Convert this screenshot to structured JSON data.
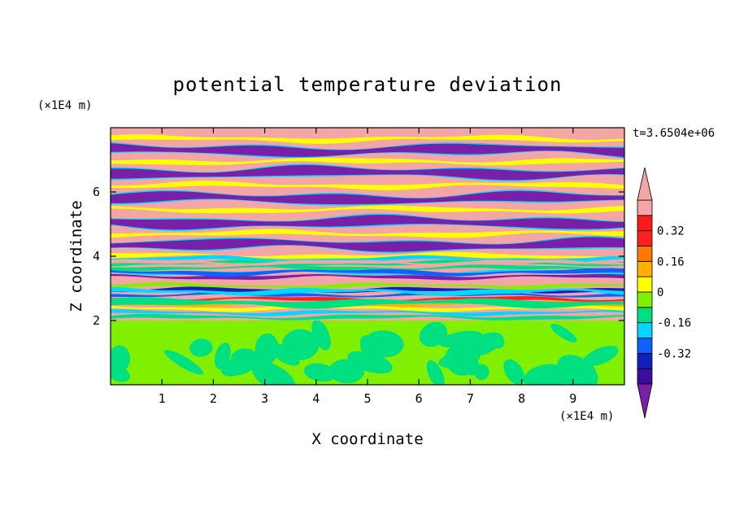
{
  "chart_data": {
    "type": "heatmap",
    "title": "potential temperature deviation",
    "xlabel": "X coordinate",
    "ylabel": "Z coordinate",
    "x_unit": "(×1E4 m)",
    "y_unit": "(×1E4 m)",
    "time_label": "t=3.6504e+06",
    "xlim": [
      0,
      10
    ],
    "ylim": [
      0,
      8
    ],
    "x_ticks": [
      "1",
      "2",
      "3",
      "4",
      "5",
      "6",
      "7",
      "8",
      "9"
    ],
    "y_ticks": [
      "2",
      "4",
      "6"
    ],
    "colorbar": {
      "levels": [
        -0.48,
        -0.4,
        -0.32,
        -0.24,
        -0.16,
        -0.08,
        0,
        0.08,
        0.16,
        0.24,
        0.32,
        0.4,
        0.48
      ],
      "labels": [
        "0.32",
        "0.16",
        "0",
        "-0.16",
        "-0.32"
      ],
      "colors": [
        "#7a1fa8",
        "#3a0fa0",
        "#1020b8",
        "#1060ff",
        "#00d8ff",
        "#00e080",
        "#80f000",
        "#ffff00",
        "#ffb000",
        "#ff7800",
        "#ff2020",
        "#ff1a1a",
        "#f4a6a6"
      ],
      "extend": "both"
    },
    "lower_layer": {
      "z_top": 2.0,
      "values": [
        -0.08,
        0.0
      ]
    },
    "upper_bands": [
      {
        "z": 7.65,
        "value": "high"
      },
      {
        "z": 7.3,
        "value": "low"
      },
      {
        "z": 6.95,
        "value": "high"
      },
      {
        "z": 6.6,
        "value": "low"
      },
      {
        "z": 6.2,
        "value": "high"
      },
      {
        "z": 5.8,
        "value": "low"
      },
      {
        "z": 5.45,
        "value": "high"
      },
      {
        "z": 5.05,
        "value": "low"
      },
      {
        "z": 4.7,
        "value": "high"
      },
      {
        "z": 4.35,
        "value": "low"
      },
      {
        "z": 4.0,
        "value": "high"
      }
    ]
  }
}
